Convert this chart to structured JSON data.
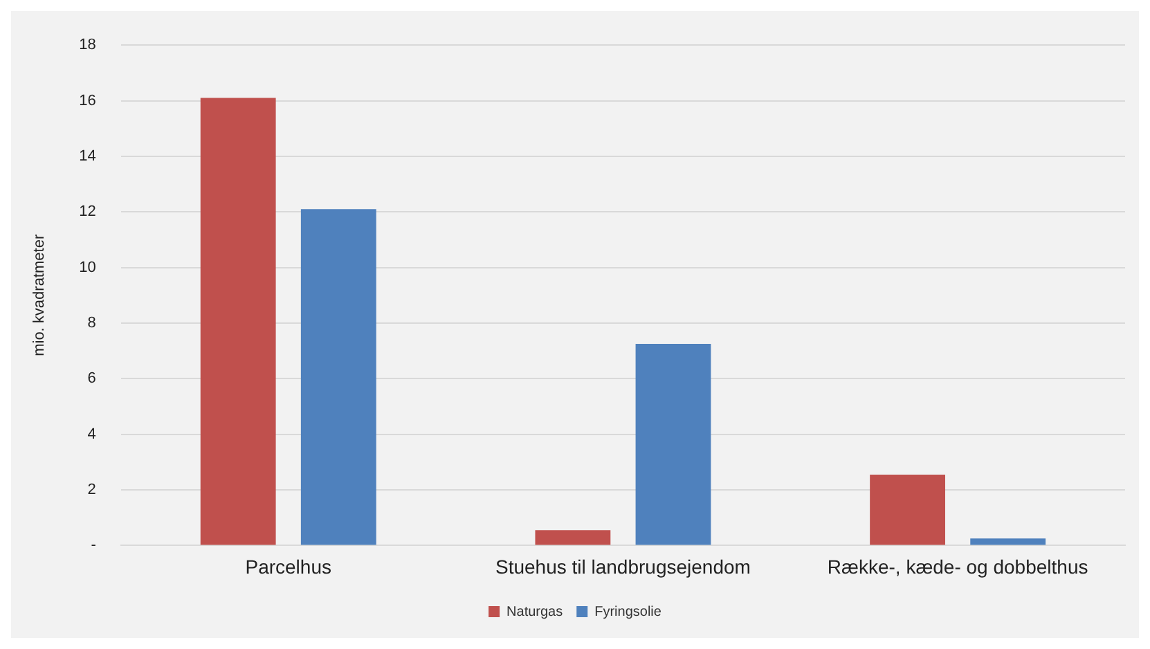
{
  "chart_data": {
    "type": "bar",
    "ylabel": "mio. kvadratmeter",
    "categories": [
      "Parcelhus",
      "Stuehus til landbrugsejendom",
      "Række-, kæde- og dobbelthus"
    ],
    "series": [
      {
        "name": "Naturgas",
        "color": "#c0504d",
        "values": [
          16.1,
          0.55,
          2.55
        ]
      },
      {
        "name": "Fyringsolie",
        "color": "#4f81bd",
        "values": [
          12.1,
          7.25,
          0.25
        ]
      }
    ],
    "ylim": [
      0,
      18
    ],
    "yticks": [
      {
        "value": 0,
        "label": "-"
      },
      2,
      4,
      6,
      8,
      10,
      12,
      14,
      16,
      18
    ],
    "grid": "y",
    "legend": "bottom"
  }
}
